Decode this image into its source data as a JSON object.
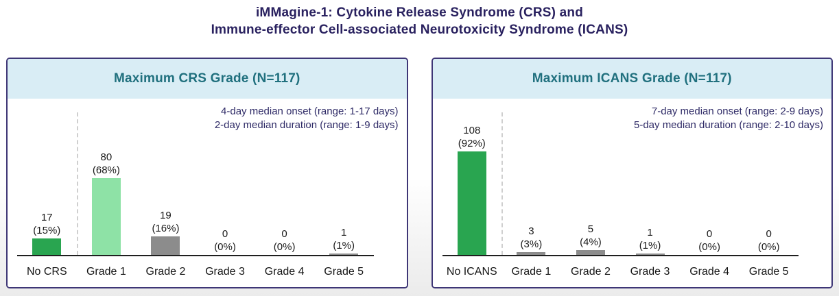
{
  "report_title": {
    "line1": "iMMagine-1: Cytokine Release Syndrome (CRS) and",
    "line2": "Immune-effector Cell-associated Neurotoxicity Syndrome (ICANS)"
  },
  "colors": {
    "title_navy": "#29215F",
    "header_teal": "#20707E",
    "header_bg_blue": "#D9EDF5",
    "panel_border": "#3E3676",
    "dark_green": "#29A550",
    "light_green": "#8EE2A6",
    "gray_bar": "#8C8C8C",
    "annotation_navy": "#2E2A66"
  },
  "chart_data": [
    {
      "type": "bar",
      "title": "Maximum CRS Grade (N=117)",
      "n": 117,
      "categories": [
        "No CRS",
        "Grade 1",
        "Grade 2",
        "Grade 3",
        "Grade 4",
        "Grade 5"
      ],
      "values": [
        17,
        80,
        19,
        0,
        0,
        1
      ],
      "count_labels": [
        "17",
        "80",
        "19",
        "0",
        "0",
        "1"
      ],
      "percent_labels": [
        "(15%)",
        "(68%)",
        "(16%)",
        "(0%)",
        "(0%)",
        "(1%)"
      ],
      "bar_colors": [
        "#29A550",
        "#8EE2A6",
        "#8C8C8C",
        "#8C8C8C",
        "#8C8C8C",
        "#8C8C8C"
      ],
      "annotations": [
        "4-day median onset (range: 1-17 days)",
        "2-day median duration (range: 1-9 days)"
      ],
      "ylim": [
        0,
        117
      ],
      "legend": "none",
      "grid": false
    },
    {
      "type": "bar",
      "title": "Maximum ICANS Grade (N=117)",
      "n": 117,
      "categories": [
        "No ICANS",
        "Grade 1",
        "Grade 2",
        "Grade 3",
        "Grade 4",
        "Grade 5"
      ],
      "values": [
        108,
        3,
        5,
        1,
        0,
        0
      ],
      "count_labels": [
        "108",
        "3",
        "5",
        "1",
        "0",
        "0"
      ],
      "percent_labels": [
        "(92%)",
        "(3%)",
        "(4%)",
        "(1%)",
        "(0%)",
        "(0%)"
      ],
      "bar_colors": [
        "#29A550",
        "#8C8C8C",
        "#8C8C8C",
        "#8C8C8C",
        "#8C8C8C",
        "#8C8C8C"
      ],
      "annotations": [
        "7-day median onset (range: 2-9 days)",
        "5-day median duration (range: 2-10 days)"
      ],
      "ylim": [
        0,
        117
      ],
      "legend": "none",
      "grid": false
    }
  ]
}
